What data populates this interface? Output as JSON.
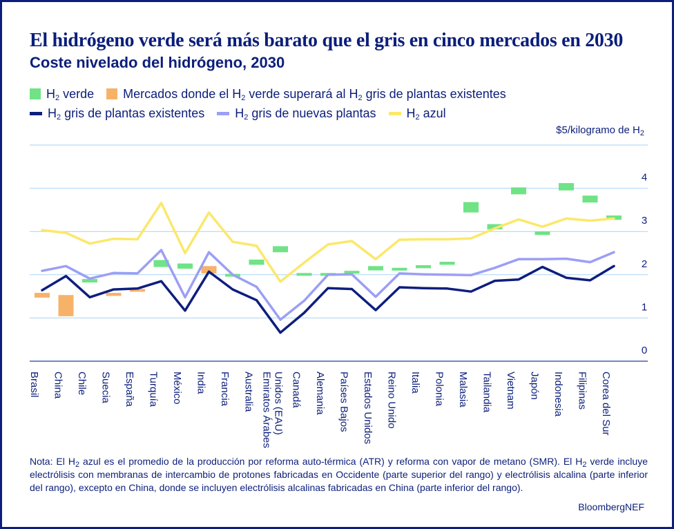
{
  "chart_data": {
    "type": "line",
    "title": "El hidrógeno verde será más barato que el gris en cinco mercados en 2030",
    "subtitle": "Coste nivelado del hidrógeno, 2030",
    "unit_label": "$5/kilogramo de H₂",
    "legend": {
      "green": "H₂ verde",
      "orange": "Mercados donde el H₂ verde superará al H₂ gris de plantas existentes",
      "grey_existing": "H₂ gris de plantas existentes",
      "grey_new": "H₂ gris de nuevas plantas",
      "blue": "H₂ azul"
    },
    "colors": {
      "green": "#6fe385",
      "orange": "#f7b26a",
      "grey_existing": "#0d1e7e",
      "grey_new": "#9b9ff5",
      "blue": "#fbe86a",
      "grid": "#aad2f5",
      "text": "#0b1e7a"
    },
    "ylim": [
      0,
      5
    ],
    "yticks": [
      0,
      1,
      2,
      3,
      4
    ],
    "categories": [
      "Brasil",
      "China",
      "Chile",
      "Suecia",
      "España",
      "Turquía",
      "México",
      "India",
      "Francia",
      "Australia",
      "Emiratos Árabes Unidos (EAU)",
      "Canadá",
      "Alemania",
      "Países Bajos",
      "Estados Unidos",
      "Reino Unido",
      "Italia",
      "Polonia",
      "Malasia",
      "Tailandia",
      "Vietnam",
      "Japón",
      "Indonesia",
      "Filipinas",
      "Corea del Sur"
    ],
    "series": [
      {
        "name": "H₂ azul",
        "key": "blue",
        "values": [
          3.03,
          2.97,
          2.72,
          2.83,
          2.82,
          3.66,
          2.5,
          3.44,
          2.76,
          2.67,
          1.84,
          2.28,
          2.7,
          2.78,
          2.36,
          2.81,
          2.82,
          2.82,
          2.84,
          3.07,
          3.28,
          3.11,
          3.3,
          3.25,
          3.3
        ]
      },
      {
        "name": "H₂ gris de nuevas plantas",
        "key": "grey_new",
        "values": [
          2.09,
          2.2,
          1.91,
          2.04,
          2.03,
          2.57,
          1.48,
          2.52,
          2.0,
          1.72,
          0.96,
          1.4,
          2.0,
          2.01,
          1.49,
          2.03,
          2.01,
          2.0,
          1.99,
          2.16,
          2.36,
          2.36,
          2.37,
          2.29,
          2.52
        ]
      },
      {
        "name": "H₂ gris de plantas existentes",
        "key": "grey_existing",
        "values": [
          1.64,
          1.97,
          1.48,
          1.66,
          1.68,
          1.85,
          1.17,
          2.07,
          1.66,
          1.41,
          0.66,
          1.12,
          1.69,
          1.67,
          1.18,
          1.71,
          1.69,
          1.68,
          1.61,
          1.86,
          1.89,
          2.18,
          1.93,
          1.87,
          2.2
        ]
      }
    ],
    "green_ranges": [
      null,
      null,
      [
        1.82,
        1.9
      ],
      null,
      null,
      [
        2.18,
        2.34
      ],
      [
        2.14,
        2.26
      ],
      null,
      [
        1.97,
        2.02
      ],
      [
        2.23,
        2.35
      ],
      [
        2.52,
        2.66
      ],
      [
        1.98,
        2.04
      ],
      [
        1.98,
        2.04
      ],
      [
        2.03,
        2.09
      ],
      [
        2.1,
        2.2
      ],
      [
        2.1,
        2.16
      ],
      [
        2.15,
        2.22
      ],
      [
        2.23,
        2.3
      ],
      [
        3.44,
        3.68
      ],
      [
        3.05,
        3.17
      ],
      [
        3.86,
        4.02
      ],
      [
        2.92,
        3.0
      ],
      [
        3.95,
        4.12
      ],
      [
        3.67,
        3.83
      ],
      [
        3.27,
        3.37
      ]
    ],
    "orange_ranges": [
      [
        1.47,
        1.58
      ],
      [
        1.04,
        1.53
      ],
      null,
      [
        1.51,
        1.58
      ],
      [
        1.61,
        1.67
      ],
      null,
      null,
      [
        2.03,
        2.2
      ],
      null,
      null,
      null,
      null,
      null,
      null,
      null,
      null,
      null,
      null,
      null,
      null,
      null,
      null,
      null,
      null,
      null
    ]
  },
  "note": "Nota: El H₂ azul es el promedio de la producción por reforma auto-térmica (ATR) y reforma con vapor de metano (SMR). El H₂ verde incluye electrólisis con membranas de intercambio de protones fabricadas en Occidente (parte superior del rango) y electrólisis alcalina (parte inferior del rango), excepto en China, donde se incluyen electrólisis alcalinas fabricadas en China (parte inferior del rango).",
  "source": "BloombergNEF"
}
